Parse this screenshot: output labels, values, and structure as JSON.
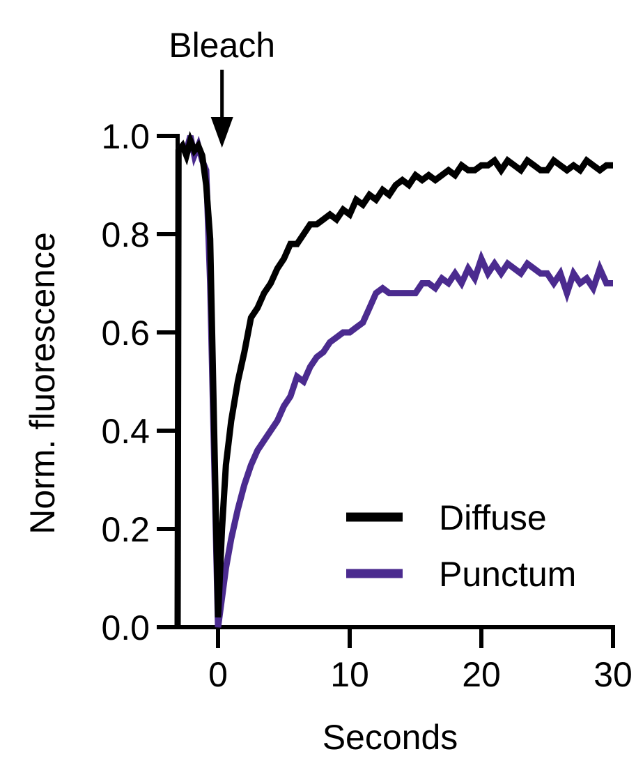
{
  "chart_data": {
    "type": "line",
    "xlabel": "Seconds",
    "ylabel": "Norm. fluorescence",
    "xlim": [
      -3,
      30
    ],
    "ylim": [
      0,
      1.0
    ],
    "x_ticks": [
      0,
      10,
      20,
      30
    ],
    "x_tick_labels": [
      "0",
      "10",
      "20",
      "30"
    ],
    "y_ticks": [
      0,
      0.2,
      0.4,
      0.6,
      0.8,
      1.0
    ],
    "y_tick_labels": [
      "0.0",
      "0.2",
      "0.4",
      "0.6",
      "0.8",
      "1.0"
    ],
    "annotation": {
      "text": "Bleach",
      "x": 0.3
    },
    "legend_position": "bottom-right",
    "grid": false,
    "series": [
      {
        "name": "Diffuse",
        "color": "#000000",
        "x": [
          -3,
          -2.7,
          -2.4,
          -2.1,
          -1.8,
          -1.5,
          -1.2,
          -0.9,
          -0.6,
          0,
          0.3,
          0.6,
          1,
          1.5,
          2,
          2.5,
          3,
          3.5,
          4,
          4.5,
          5,
          5.5,
          6,
          6.5,
          7,
          7.5,
          8,
          8.5,
          9,
          9.5,
          10,
          10.5,
          11,
          11.5,
          12,
          12.5,
          13,
          13.5,
          14,
          14.5,
          15,
          15.5,
          16,
          16.5,
          17,
          17.5,
          18,
          18.5,
          19,
          19.5,
          20,
          20.5,
          21,
          21.5,
          22,
          22.5,
          23,
          23.5,
          24,
          24.5,
          25,
          25.5,
          26,
          26.5,
          27,
          27.5,
          28,
          28.5,
          29,
          29.5,
          30
        ],
        "y": [
          0.97,
          0.98,
          0.96,
          0.99,
          0.97,
          0.98,
          0.96,
          0.9,
          0.79,
          0.02,
          0.2,
          0.33,
          0.42,
          0.5,
          0.56,
          0.63,
          0.65,
          0.68,
          0.7,
          0.73,
          0.75,
          0.78,
          0.78,
          0.8,
          0.82,
          0.82,
          0.83,
          0.84,
          0.83,
          0.85,
          0.84,
          0.87,
          0.86,
          0.88,
          0.87,
          0.89,
          0.88,
          0.9,
          0.91,
          0.9,
          0.92,
          0.91,
          0.92,
          0.91,
          0.92,
          0.93,
          0.92,
          0.94,
          0.93,
          0.93,
          0.94,
          0.94,
          0.95,
          0.93,
          0.95,
          0.94,
          0.93,
          0.95,
          0.94,
          0.93,
          0.93,
          0.95,
          0.94,
          0.93,
          0.94,
          0.93,
          0.95,
          0.94,
          0.93,
          0.94,
          0.94
        ]
      },
      {
        "name": "Punctum",
        "color": "#4b2b8f",
        "x": [
          -3,
          -2.7,
          -2.4,
          -2.1,
          -1.8,
          -1.5,
          -1.2,
          -0.9,
          -0.6,
          0,
          0.3,
          0.6,
          1,
          1.5,
          2,
          2.5,
          3,
          3.5,
          4,
          4.5,
          5,
          5.5,
          6,
          6.5,
          7,
          7.5,
          8,
          8.5,
          9,
          9.5,
          10,
          10.5,
          11,
          11.5,
          12,
          12.5,
          13,
          13.5,
          14,
          14.5,
          15,
          15.5,
          16,
          16.5,
          17,
          17.5,
          18,
          18.5,
          19,
          19.5,
          20,
          20.5,
          21,
          21.5,
          22,
          22.5,
          23,
          23.5,
          24,
          24.5,
          25,
          25.5,
          26,
          26.5,
          27,
          27.5,
          28,
          28.5,
          29,
          29.5,
          30
        ],
        "y": [
          0.97,
          0.98,
          0.97,
          1.0,
          0.96,
          0.98,
          0.95,
          0.93,
          0.7,
          0.0,
          0.06,
          0.12,
          0.18,
          0.24,
          0.29,
          0.33,
          0.36,
          0.38,
          0.4,
          0.42,
          0.45,
          0.47,
          0.51,
          0.5,
          0.53,
          0.55,
          0.56,
          0.58,
          0.59,
          0.6,
          0.6,
          0.61,
          0.62,
          0.65,
          0.68,
          0.69,
          0.68,
          0.68,
          0.68,
          0.68,
          0.68,
          0.7,
          0.7,
          0.69,
          0.71,
          0.7,
          0.72,
          0.7,
          0.73,
          0.71,
          0.75,
          0.72,
          0.74,
          0.72,
          0.74,
          0.73,
          0.72,
          0.74,
          0.73,
          0.72,
          0.72,
          0.7,
          0.72,
          0.68,
          0.72,
          0.7,
          0.71,
          0.69,
          0.73,
          0.7,
          0.7
        ]
      }
    ]
  }
}
